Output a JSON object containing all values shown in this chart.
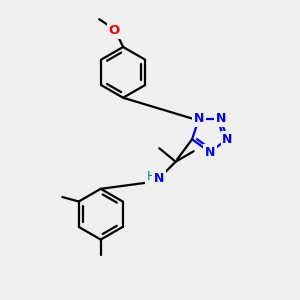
{
  "bg_color": "#efefef",
  "bond_color": "#000000",
  "N_color": "#0000ee",
  "O_color": "#ee0000",
  "H_color": "#008080",
  "lw": 1.6,
  "figsize": [
    3.0,
    3.0
  ],
  "dpi": 100,
  "xlim": [
    0,
    10
  ],
  "ylim": [
    0,
    10
  ]
}
